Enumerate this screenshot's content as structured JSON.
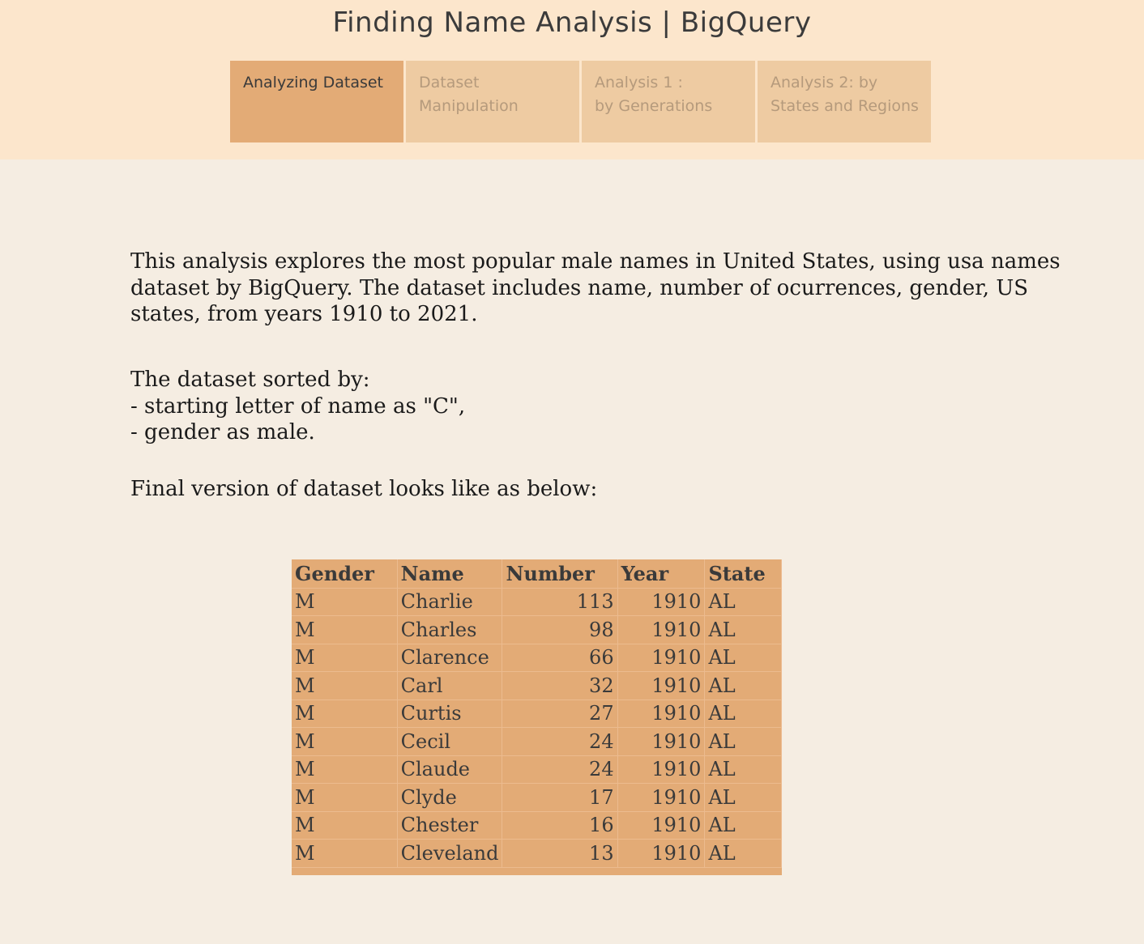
{
  "header": {
    "title": "Finding Name Analysis | BigQuery",
    "tabs": [
      {
        "line1": "Analyzing Dataset",
        "line2": ""
      },
      {
        "line1": "Dataset",
        "line2": "Manipulation"
      },
      {
        "line1": "Analysis 1 :",
        "line2": "by Generations"
      },
      {
        "line1": "Analysis 2: by",
        "line2": "States and Regions"
      }
    ],
    "active_tab": 0
  },
  "content": {
    "intro": "This analysis explores the most popular male names in United States, using usa names dataset by BigQuery. The dataset includes name, number of ocurrences, gender, US states, from years 1910 to 2021.",
    "sorted_heading": "The dataset sorted by:",
    "sorted_criteria": [
      "- starting letter of name as \"C\",",
      "- gender as male."
    ],
    "final_note": "Final version of dataset looks like as below:"
  },
  "table": {
    "headers": [
      "Gender",
      "Name",
      "Number",
      "Year",
      "State"
    ],
    "rows": [
      [
        "M",
        "Charlie",
        "113",
        "1910",
        "AL"
      ],
      [
        "M",
        "Charles",
        "98",
        "1910",
        "AL"
      ],
      [
        "M",
        "Clarence",
        "66",
        "1910",
        "AL"
      ],
      [
        "M",
        "Carl",
        "32",
        "1910",
        "AL"
      ],
      [
        "M",
        "Curtis",
        "27",
        "1910",
        "AL"
      ],
      [
        "M",
        "Cecil",
        "24",
        "1910",
        "AL"
      ],
      [
        "M",
        "Claude",
        "24",
        "1910",
        "AL"
      ],
      [
        "M",
        "Clyde",
        "17",
        "1910",
        "AL"
      ],
      [
        "M",
        "Chester",
        "16",
        "1910",
        "AL"
      ],
      [
        "M",
        "Cleveland",
        "13",
        "1910",
        "AL"
      ]
    ]
  },
  "colors": {
    "header_bg": "#fce6cc",
    "page_bg": "#f5ede2",
    "tab_bg": "#eecba2",
    "tab_active_bg": "#e3ab76",
    "table_bg": "#e3ab76"
  }
}
